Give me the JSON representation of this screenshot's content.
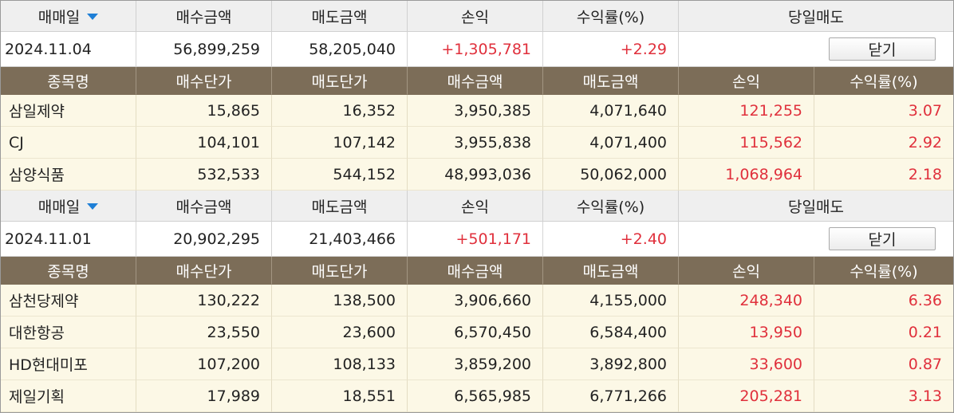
{
  "labels": {
    "trade_date": "매매일",
    "buy_amount": "매수금액",
    "sell_amount": "매도금액",
    "pnl": "손익",
    "return_rate": "수익률(%)",
    "same_day_sell": "당일매도",
    "stock_name": "종목명",
    "buy_price": "매수단가",
    "sell_price": "매도단가",
    "close_button": "닫기"
  },
  "colors": {
    "detail_header_bg": "#7c6d58",
    "row_bg": "#fcf8e6",
    "profit_red": "#e0303c",
    "sort_arrow_blue": "#1e7fd6"
  },
  "groups": [
    {
      "summary": {
        "date": "2024.11.04",
        "buy_amount": "56,899,259",
        "sell_amount": "58,205,040",
        "pnl": "+1,305,781",
        "return_rate": "+2.29"
      },
      "rows": [
        {
          "name": "삼일제약",
          "buy_price": "15,865",
          "sell_price": "16,352",
          "buy_amount": "3,950,385",
          "sell_amount": "4,071,640",
          "pnl": "121,255",
          "return_rate": "3.07"
        },
        {
          "name": "CJ",
          "buy_price": "104,101",
          "sell_price": "107,142",
          "buy_amount": "3,955,838",
          "sell_amount": "4,071,400",
          "pnl": "115,562",
          "return_rate": "2.92"
        },
        {
          "name": "삼양식품",
          "buy_price": "532,533",
          "sell_price": "544,152",
          "buy_amount": "48,993,036",
          "sell_amount": "50,062,000",
          "pnl": "1,068,964",
          "return_rate": "2.18"
        }
      ]
    },
    {
      "summary": {
        "date": "2024.11.01",
        "buy_amount": "20,902,295",
        "sell_amount": "21,403,466",
        "pnl": "+501,171",
        "return_rate": "+2.40"
      },
      "rows": [
        {
          "name": "삼천당제약",
          "buy_price": "130,222",
          "sell_price": "138,500",
          "buy_amount": "3,906,660",
          "sell_amount": "4,155,000",
          "pnl": "248,340",
          "return_rate": "6.36"
        },
        {
          "name": "대한항공",
          "buy_price": "23,550",
          "sell_price": "23,600",
          "buy_amount": "6,570,450",
          "sell_amount": "6,584,400",
          "pnl": "13,950",
          "return_rate": "0.21"
        },
        {
          "name": "HD현대미포",
          "buy_price": "107,200",
          "sell_price": "108,133",
          "buy_amount": "3,859,200",
          "sell_amount": "3,892,800",
          "pnl": "33,600",
          "return_rate": "0.87"
        },
        {
          "name": "제일기획",
          "buy_price": "17,989",
          "sell_price": "18,551",
          "buy_amount": "6,565,985",
          "sell_amount": "6,771,266",
          "pnl": "205,281",
          "return_rate": "3.13"
        }
      ]
    }
  ]
}
